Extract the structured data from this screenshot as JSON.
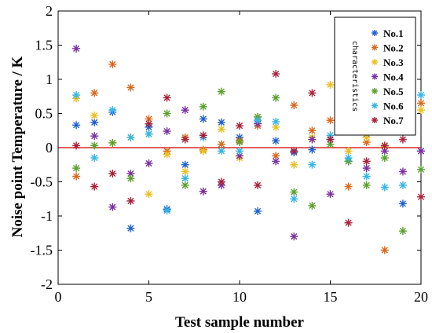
{
  "chart_data": {
    "type": "scatter",
    "title": "",
    "xlabel": "Test sample number",
    "ylabel": "Noise point Temperature / K",
    "xlim": [
      0,
      20
    ],
    "ylim": [
      -2,
      2
    ],
    "xticks": [
      0,
      5,
      10,
      15,
      20
    ],
    "yticks": [
      -2,
      -1.5,
      -1,
      -0.5,
      0,
      0.5,
      1,
      1.5,
      2
    ],
    "grid": false,
    "legend_title": "characteristics",
    "legend_position": "top-right",
    "reference_line": {
      "y": 0,
      "color": "#cc0000"
    },
    "x": [
      1,
      2,
      3,
      4,
      5,
      6,
      7,
      8,
      9,
      10,
      11,
      12,
      13,
      14,
      15,
      16,
      17,
      18,
      19,
      20
    ],
    "series": [
      {
        "name": "No.1",
        "color": "#1f5fd0",
        "values": [
          0.33,
          0.37,
          0.52,
          -1.18,
          0.3,
          -0.9,
          -0.25,
          0.42,
          0.37,
          0.15,
          -0.93,
          0.1,
          -0.07,
          -0.03,
          0.12,
          -0.2,
          0.2,
          0.25,
          -0.82,
          -0.05
        ]
      },
      {
        "name": "No.2",
        "color": "#d9681b",
        "values": [
          -0.42,
          0.8,
          1.22,
          0.88,
          0.42,
          -0.05,
          0.15,
          -0.03,
          0.05,
          0.1,
          0.32,
          -0.12,
          0.62,
          0.25,
          0.4,
          -0.57,
          0.08,
          -1.5,
          0.32,
          0.65
        ]
      },
      {
        "name": "No.3",
        "color": "#e8c020",
        "values": [
          0.72,
          0.47,
          0.07,
          0.15,
          -0.68,
          -0.1,
          -0.35,
          -0.05,
          0.27,
          -0.15,
          0.45,
          0.3,
          -0.25,
          0.15,
          0.92,
          -0.05,
          0.15,
          0.02,
          0.25,
          0.55
        ]
      },
      {
        "name": "No.4",
        "color": "#7b2fa0",
        "values": [
          1.45,
          0.17,
          -0.87,
          -0.38,
          -0.23,
          0.24,
          0.55,
          -0.64,
          -0.55,
          -0.12,
          0.35,
          -0.2,
          -1.3,
          0.12,
          -0.68,
          0.28,
          -0.3,
          -0.05,
          -0.35,
          -0.05
        ]
      },
      {
        "name": "No.5",
        "color": "#5aa02c",
        "values": [
          -0.3,
          0.03,
          0.07,
          -0.45,
          0.2,
          0.5,
          -0.55,
          0.6,
          0.82,
          0.08,
          0.45,
          0.73,
          -0.65,
          -0.85,
          0.05,
          -0.2,
          -0.55,
          -0.15,
          -1.22,
          -0.32
        ]
      },
      {
        "name": "No.6",
        "color": "#33b5e5",
        "values": [
          0.77,
          -0.15,
          0.55,
          0.15,
          0.2,
          -0.92,
          -0.45,
          0.15,
          -0.05,
          -0.05,
          0.4,
          0.38,
          -0.75,
          -0.25,
          0.18,
          -0.15,
          -0.42,
          -0.58,
          -0.55,
          0.77
        ]
      },
      {
        "name": "No.7",
        "color": "#a8203a",
        "values": [
          0.03,
          -0.57,
          -0.38,
          -0.78,
          0.35,
          0.73,
          0.12,
          0.18,
          -0.5,
          0.32,
          -0.55,
          1.08,
          -0.05,
          0.8,
          0.12,
          -1.1,
          -0.2,
          0.03,
          0.12,
          -0.72
        ]
      }
    ]
  }
}
